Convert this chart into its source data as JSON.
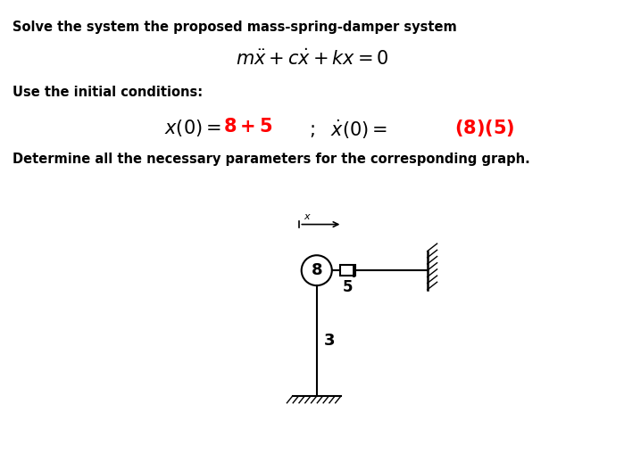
{
  "title_line1": "Solve the system the proposed mass-spring-damper system",
  "initial_cond_label": "Use the initial conditions:",
  "determine_text": "Determine all the necessary parameters for the corresponding graph.",
  "mass_label": "8",
  "damper_label": "5",
  "rod_label": "3",
  "bg_color": "#ffffff",
  "text_color": "#000000",
  "red_color": "#ff0000",
  "fig_w": 6.99,
  "fig_h": 5.18,
  "dpi": 100
}
